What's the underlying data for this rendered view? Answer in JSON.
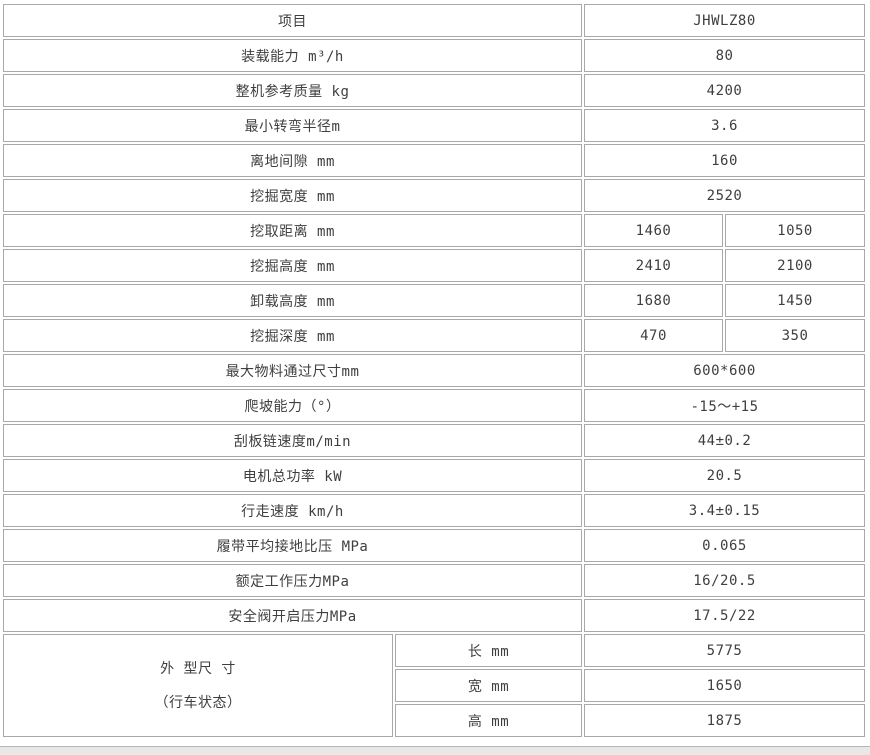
{
  "colors": {
    "border": "#a9a9a9",
    "text": "#3f3f3f",
    "cell_bg": "#ffffff",
    "page_bg": "#ffffff",
    "bottom_strip": "#e8e8e8"
  },
  "table": {
    "header": {
      "label": "项目",
      "value": "JHWLZ80"
    },
    "rows": [
      {
        "label": "装载能力 m³/h",
        "value": "80"
      },
      {
        "label": "整机参考质量 kg",
        "value": "4200"
      },
      {
        "label": "最小转弯半径m",
        "value": "3.6"
      },
      {
        "label": "离地间隙 mm",
        "value": "160"
      },
      {
        "label": "挖掘宽度 mm",
        "value": "2520"
      },
      {
        "label": "挖取距离 mm",
        "value1": "1460",
        "value2": "1050"
      },
      {
        "label": "挖掘高度 mm",
        "value1": "2410",
        "value2": "2100"
      },
      {
        "label": "卸载高度 mm",
        "value1": "1680",
        "value2": "1450"
      },
      {
        "label": "挖掘深度 mm",
        "value1": "470",
        "value2": "350"
      },
      {
        "label": "最大物料通过尺寸mm",
        "value": "600*600"
      },
      {
        "label": "爬坡能力（°）",
        "value": "-15～+15"
      },
      {
        "label": "刮板链速度m/min",
        "value": "44±0.2"
      },
      {
        "label": "电机总功率 kW",
        "value": "20.5"
      },
      {
        "label": "行走速度 km/h",
        "value": "3.4±0.15"
      },
      {
        "label": "履带平均接地比压 MPa",
        "value": "0.065"
      },
      {
        "label": "额定工作压力MPa",
        "value": "16/20.5"
      },
      {
        "label": "安全阀开启压力MPa",
        "value": "17.5/22"
      }
    ],
    "dimensions": {
      "label_line1": "外 型尺 寸",
      "label_line2": "（行车状态）",
      "items": [
        {
          "label": "长 mm",
          "value": "5775"
        },
        {
          "label": "宽 mm",
          "value": "1650"
        },
        {
          "label": "高 mm",
          "value": "1875"
        }
      ]
    }
  }
}
